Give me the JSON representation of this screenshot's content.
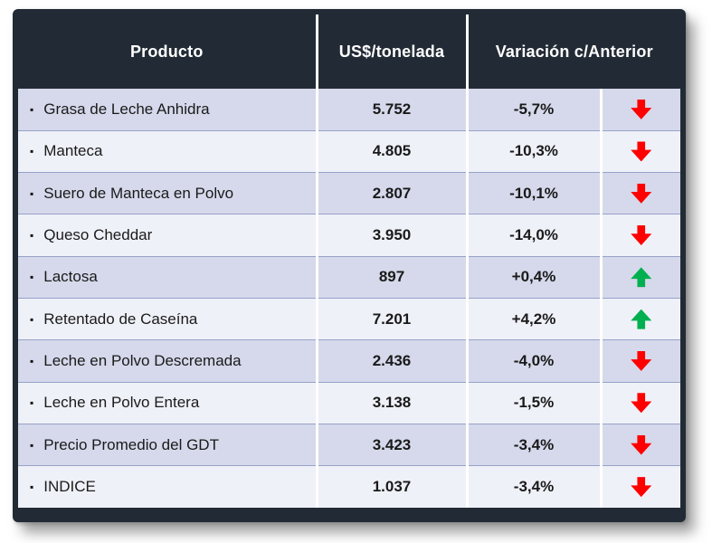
{
  "bullet": "▪",
  "chart_data": {
    "type": "table",
    "title": "",
    "columns": [
      "Producto",
      "US$/tonelada",
      "Variación c/Anterior"
    ],
    "colors": {
      "up": "#00B050",
      "down": "#FF0000",
      "header_bg": "#222B35",
      "row_odd": "#D5D9EB",
      "row_even": "#EFF1F8"
    },
    "rows": [
      {
        "producto": "Grasa de Leche Anhidra",
        "precio": "5.752",
        "variacion": "-5,7%",
        "tendencia": "down"
      },
      {
        "producto": "Manteca",
        "precio": "4.805",
        "variacion": "-10,3%",
        "tendencia": "down"
      },
      {
        "producto": "Suero de Manteca en Polvo",
        "precio": "2.807",
        "variacion": "-10,1%",
        "tendencia": "down"
      },
      {
        "producto": "Queso Cheddar",
        "precio": "3.950",
        "variacion": "-14,0%",
        "tendencia": "down"
      },
      {
        "producto": "Lactosa",
        "precio": "897",
        "variacion": "+0,4%",
        "tendencia": "up"
      },
      {
        "producto": "Retentado de Caseína",
        "precio": "7.201",
        "variacion": "+4,2%",
        "tendencia": "up"
      },
      {
        "producto": "Leche en Polvo Descremada",
        "precio": "2.436",
        "variacion": "-4,0%",
        "tendencia": "down"
      },
      {
        "producto": "Leche en Polvo Entera",
        "precio": "3.138",
        "variacion": "-1,5%",
        "tendencia": "down"
      },
      {
        "producto": "Precio Promedio del GDT",
        "precio": "3.423",
        "variacion": "-3,4%",
        "tendencia": "down"
      },
      {
        "producto": "INDICE",
        "precio": "1.037",
        "variacion": "-3,4%",
        "tendencia": "down"
      }
    ]
  }
}
